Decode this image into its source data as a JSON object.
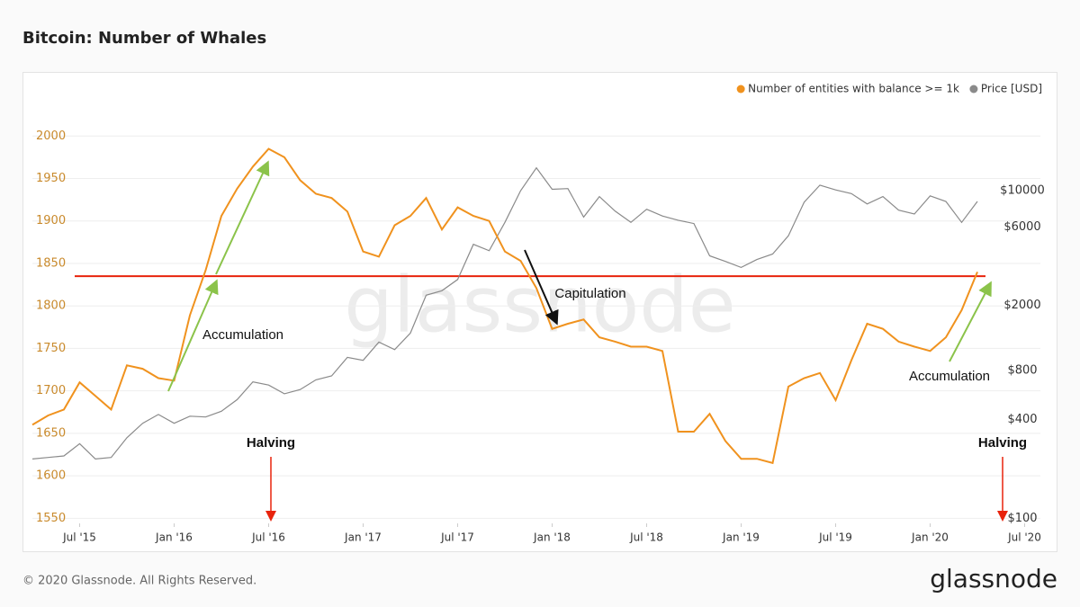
{
  "chart_data": {
    "type": "line",
    "title": "Bitcoin: Number of Whales",
    "footer": "© 2020 Glassnode. All Rights Reserved.",
    "logo": "glassnode",
    "watermark": "glassnode",
    "legend": "top-right",
    "grid": true,
    "x": [
      "2015-04",
      "2015-05",
      "2015-06",
      "2015-07",
      "2015-08",
      "2015-09",
      "2015-10",
      "2015-11",
      "2015-12",
      "2016-01",
      "2016-02",
      "2016-03",
      "2016-04",
      "2016-05",
      "2016-06",
      "2016-07",
      "2016-08",
      "2016-09",
      "2016-10",
      "2016-11",
      "2016-12",
      "2017-01",
      "2017-02",
      "2017-03",
      "2017-04",
      "2017-05",
      "2017-06",
      "2017-07",
      "2017-08",
      "2017-09",
      "2017-10",
      "2017-11",
      "2017-12",
      "2018-01",
      "2018-02",
      "2018-03",
      "2018-04",
      "2018-05",
      "2018-06",
      "2018-07",
      "2018-08",
      "2018-09",
      "2018-10",
      "2018-11",
      "2018-12",
      "2019-01",
      "2019-02",
      "2019-03",
      "2019-04",
      "2019-05",
      "2019-06",
      "2019-07",
      "2019-08",
      "2019-09",
      "2019-10",
      "2019-11",
      "2019-12",
      "2020-01",
      "2020-02",
      "2020-03",
      "2020-04"
    ],
    "xlim": [
      "2015-04",
      "2020-08"
    ],
    "xticks": [
      {
        "value": "2015-07",
        "label": "Jul '15"
      },
      {
        "value": "2016-01",
        "label": "Jan '16"
      },
      {
        "value": "2016-07",
        "label": "Jul '16"
      },
      {
        "value": "2017-01",
        "label": "Jan '17"
      },
      {
        "value": "2017-07",
        "label": "Jul '17"
      },
      {
        "value": "2018-01",
        "label": "Jan '18"
      },
      {
        "value": "2018-07",
        "label": "Jul '18"
      },
      {
        "value": "2019-01",
        "label": "Jan '19"
      },
      {
        "value": "2019-07",
        "label": "Jul '19"
      },
      {
        "value": "2020-01",
        "label": "Jan '20"
      },
      {
        "value": "2020-07",
        "label": "Jul '20"
      }
    ],
    "ylim": [
      1544,
      2049
    ],
    "yticks": [
      1550,
      1600,
      1650,
      1700,
      1750,
      1800,
      1850,
      1900,
      1950,
      2000
    ],
    "y2lim": [
      93,
      38700
    ],
    "y2log": true,
    "y2ticks": [
      {
        "value": 100,
        "label": "$100"
      },
      {
        "value": 400,
        "label": "$400"
      },
      {
        "value": 800,
        "label": "$800"
      },
      {
        "value": 2000,
        "label": "$2000"
      },
      {
        "value": 6000,
        "label": "$6000"
      },
      {
        "value": 10000,
        "label": "$10000"
      }
    ],
    "series": [
      {
        "name": "Number of entities with balance >= 1k",
        "color": "#f0921e",
        "values": [
          1660,
          1671,
          1678,
          1710,
          1694,
          1678,
          1730,
          1726,
          1715,
          1712,
          1789,
          1842,
          1906,
          1938,
          1964,
          1985,
          1975,
          1948,
          1932,
          1927,
          1911,
          1864,
          1858,
          1895,
          1906,
          1927,
          1890,
          1916,
          1906,
          1900,
          1864,
          1853,
          1821,
          1773,
          1779,
          1784,
          1763,
          1758,
          1752,
          1752,
          1747,
          1652,
          1652,
          1673,
          1641,
          1620,
          1620,
          1615,
          1705,
          1715,
          1721,
          1689,
          1736,
          1779,
          1773,
          1758,
          1752,
          1747,
          1763,
          1795,
          1840
        ]
      },
      {
        "name": "Price [USD]",
        "color": "#8a8a8a",
        "axis": "y2",
        "values": [
          230,
          235,
          240,
          285,
          230,
          235,
          310,
          380,
          430,
          380,
          420,
          415,
          450,
          530,
          680,
          650,
          575,
          610,
          700,
          740,
          960,
          920,
          1190,
          1070,
          1350,
          2300,
          2450,
          2870,
          4700,
          4300,
          6400,
          10000,
          13800,
          10200,
          10300,
          6900,
          9200,
          7500,
          6400,
          7700,
          7000,
          6600,
          6300,
          4000,
          3700,
          3400,
          3800,
          4100,
          5300,
          8500,
          10800,
          10100,
          9600,
          8300,
          9200,
          7600,
          7200,
          9300,
          8600,
          6400,
          8600
        ]
      }
    ],
    "hline": {
      "value": 1835,
      "color": "#e8230c"
    },
    "annotations": [
      "Accumulation",
      "Capitulation",
      "Accumulation",
      "Halving",
      "Halving"
    ]
  }
}
